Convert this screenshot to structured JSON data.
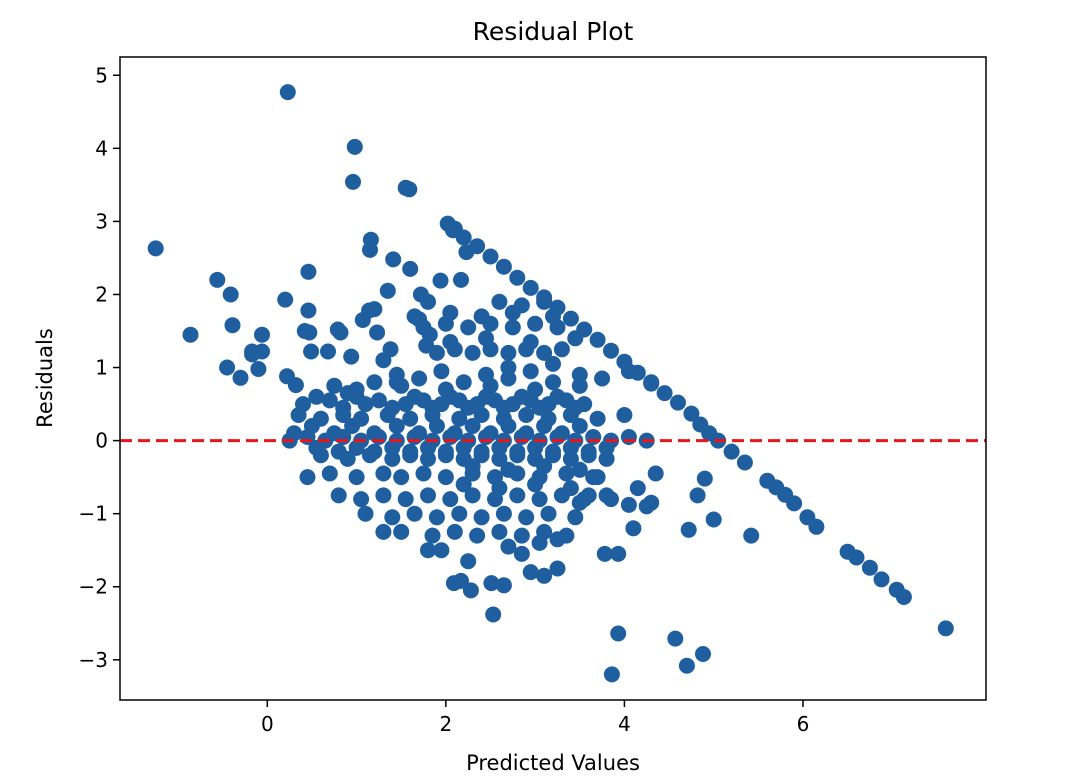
{
  "colors": {
    "points": "#1f5fa0",
    "reference_line": "#e8161b",
    "axes": "#000000",
    "background": "#ffffff"
  },
  "chart_data": {
    "type": "scatter",
    "title": "Residual Plot",
    "xlabel": "Predicted Values",
    "ylabel": "Residuals",
    "xlim": [
      -1.65,
      8.05
    ],
    "ylim": [
      -3.55,
      5.25
    ],
    "xticks": [
      0,
      2,
      4,
      6
    ],
    "xtick_labels": [
      "0",
      "2",
      "4",
      "6"
    ],
    "yticks": [
      -3,
      -2,
      -1,
      0,
      1,
      2,
      3,
      4,
      5
    ],
    "ytick_labels": [
      "−3",
      "−2",
      "−1",
      "0",
      "1",
      "2",
      "3",
      "4",
      "5"
    ],
    "grid": false,
    "reference_line": {
      "orientation": "horizontal",
      "y": 0,
      "style": "dashed"
    },
    "series": [
      {
        "name": "Residuals",
        "x": [
          0.23,
          0.98,
          0.96,
          1.55,
          1.59,
          -1.25,
          2.02,
          2.08,
          1.16,
          1.15,
          2.23,
          1.41,
          0.46,
          2.17,
          1.94,
          1.35,
          1.6,
          -0.56,
          -0.41,
          1.72,
          1.8,
          0.2,
          1.14,
          0.46,
          0.42,
          1.23,
          1.38,
          -0.86,
          0.47,
          1.78,
          0.82,
          0.79,
          -0.06,
          -0.39,
          1.07,
          1.2,
          -0.17,
          0.49,
          0.68,
          0.94,
          -0.45,
          -0.06,
          -0.17,
          -0.1,
          1.7,
          1.82,
          1.3,
          2.05,
          1.45,
          -0.3,
          0.9,
          0.75,
          0.32,
          0.22,
          2.1,
          2.2,
          2.35,
          2.5,
          2.65,
          2.8,
          2.95,
          3.1,
          3.25,
          3.4,
          3.55,
          3.7,
          3.85,
          4.0,
          4.15,
          4.3,
          4.45,
          4.6,
          4.75,
          4.85,
          4.95,
          5.05,
          5.2,
          5.35,
          5.6,
          5.7,
          5.8,
          5.9,
          6.05,
          6.15,
          6.5,
          6.6,
          6.75,
          6.88,
          7.05,
          7.13,
          7.6,
          3.93,
          3.86,
          4.57,
          4.7,
          4.88,
          2.53,
          2.17,
          2.28,
          2.09,
          2.51,
          2.65,
          2.95,
          3.1,
          3.25,
          3.78,
          3.93,
          4.1,
          4.72,
          4.82,
          4.9,
          5.0,
          5.42,
          4.3,
          4.35,
          4.25,
          3.5,
          3.6,
          3.7,
          3.85,
          4.15,
          4.05,
          1.3,
          1.8,
          1.95,
          2.25,
          2.7,
          3.25,
          2.85,
          3.05,
          0.4,
          0.55,
          0.7,
          0.85,
          1.0,
          1.1,
          1.25,
          1.4,
          1.55,
          1.65,
          1.75,
          1.85,
          1.95,
          2.05,
          2.15,
          2.25,
          2.35,
          2.45,
          2.55,
          2.65,
          2.75,
          2.85,
          2.95,
          3.05,
          3.15,
          3.25,
          3.35,
          3.45,
          3.55,
          0.3,
          0.5,
          0.75,
          0.95,
          1.2,
          1.45,
          1.7,
          1.9,
          2.1,
          2.3,
          2.5,
          2.7,
          2.9,
          3.1,
          3.3,
          3.5,
          0.6,
          0.9,
          1.15,
          1.4,
          1.6,
          1.8,
          2.0,
          2.2,
          2.4,
          2.6,
          2.8,
          3.0,
          3.2,
          3.4,
          3.6,
          3.8,
          0.45,
          0.7,
          1.0,
          1.3,
          1.5,
          1.75,
          2.0,
          2.3,
          2.55,
          2.8,
          3.05,
          3.35,
          3.65,
          0.35,
          0.6,
          0.85,
          1.05,
          1.35,
          1.6,
          1.85,
          2.15,
          2.4,
          2.65,
          2.9,
          3.15,
          3.4,
          3.7,
          4.0,
          0.8,
          1.05,
          1.3,
          1.55,
          1.8,
          2.05,
          2.3,
          2.55,
          2.8,
          3.05,
          3.3,
          3.55,
          3.8,
          1.1,
          1.4,
          1.65,
          1.9,
          2.15,
          2.4,
          2.65,
          2.9,
          3.15,
          3.45,
          1.5,
          1.85,
          2.1,
          2.35,
          2.6,
          2.85,
          3.1,
          3.35,
          1.2,
          1.45,
          1.7,
          1.95,
          2.2,
          2.45,
          2.7,
          2.95,
          3.2,
          3.5,
          3.75,
          4.05,
          4.3,
          0.25,
          0.45,
          0.65,
          0.85,
          1.05,
          1.25,
          1.45,
          1.65,
          1.85,
          2.05,
          2.25,
          2.45,
          2.65,
          2.85,
          3.05,
          3.25,
          3.45,
          3.65,
          3.85,
          4.05,
          4.25,
          0.55,
          0.8,
          1.0,
          1.2,
          1.4,
          1.6,
          1.8,
          2.0,
          2.2,
          2.4,
          2.6,
          2.8,
          3.0,
          3.2,
          3.4,
          3.6,
          3.8,
          1.9,
          2.1,
          2.3,
          2.5,
          2.7,
          2.9,
          3.1,
          3.3,
          1.75,
          2.0,
          2.25,
          2.5,
          2.75,
          3.0,
          3.25,
          2.6,
          2.85,
          3.1,
          1.65,
          2.05,
          2.4,
          2.75,
          3.2,
          1.0,
          1.5,
          2.0,
          2.5,
          3.0,
          3.5,
          2.2,
          2.6,
          3.0,
          3.4,
          2.3,
          2.7,
          3.1,
          3.5,
          2.45,
          2.95,
          3.45,
          2.7,
          3.2
        ],
        "y": [
          4.77,
          4.02,
          3.54,
          3.46,
          3.44,
          2.63,
          2.97,
          2.88,
          2.75,
          2.61,
          2.58,
          2.48,
          2.31,
          2.2,
          2.19,
          2.05,
          2.35,
          2.2,
          2.0,
          2.0,
          1.9,
          1.93,
          1.78,
          1.78,
          1.5,
          1.48,
          1.25,
          1.45,
          1.48,
          1.3,
          1.48,
          1.52,
          1.45,
          1.58,
          1.65,
          1.8,
          1.22,
          1.22,
          1.22,
          1.15,
          1.0,
          1.22,
          1.18,
          0.98,
          1.66,
          1.45,
          1.1,
          1.35,
          0.8,
          0.86,
          0.65,
          0.75,
          0.76,
          0.88,
          2.9,
          2.78,
          2.66,
          2.52,
          2.38,
          2.23,
          2.09,
          1.96,
          1.82,
          1.67,
          1.52,
          1.38,
          1.23,
          1.08,
          0.93,
          0.78,
          0.65,
          0.52,
          0.37,
          0.22,
          0.1,
          0.0,
          -0.15,
          -0.3,
          -0.55,
          -0.64,
          -0.74,
          -0.86,
          -1.05,
          -1.18,
          -1.52,
          -1.6,
          -1.74,
          -1.9,
          -2.04,
          -2.14,
          -2.57,
          -2.64,
          -3.2,
          -2.71,
          -3.08,
          -2.92,
          -2.38,
          -1.92,
          -2.05,
          -1.95,
          -1.95,
          -1.98,
          -1.8,
          -1.85,
          -1.75,
          -1.55,
          -1.55,
          -1.2,
          -1.22,
          -0.75,
          -0.52,
          -1.08,
          -1.3,
          -0.85,
          -0.45,
          -0.9,
          -0.85,
          -0.75,
          -0.5,
          -0.8,
          -0.65,
          -0.88,
          -1.25,
          -1.5,
          -1.5,
          -1.65,
          -1.45,
          -1.35,
          -1.55,
          -1.4,
          0.5,
          0.6,
          0.55,
          0.45,
          0.6,
          0.5,
          0.55,
          0.45,
          0.5,
          0.6,
          0.55,
          0.45,
          0.5,
          0.6,
          0.55,
          0.45,
          0.5,
          0.6,
          0.55,
          0.45,
          0.5,
          0.6,
          0.55,
          0.45,
          0.5,
          0.6,
          0.55,
          0.45,
          0.5,
          0.1,
          0.2,
          0.1,
          0.2,
          0.1,
          0.2,
          0.1,
          0.2,
          0.1,
          0.2,
          0.1,
          0.2,
          0.1,
          0.2,
          0.1,
          0.2,
          -0.2,
          -0.25,
          -0.2,
          -0.25,
          -0.2,
          -0.25,
          -0.2,
          -0.25,
          -0.2,
          -0.25,
          -0.2,
          -0.25,
          -0.2,
          -0.25,
          -0.2,
          -0.25,
          -0.5,
          -0.45,
          -0.5,
          -0.45,
          -0.5,
          -0.45,
          -0.5,
          -0.45,
          -0.5,
          -0.45,
          -0.5,
          -0.45,
          -0.5,
          0.35,
          0.3,
          0.35,
          0.3,
          0.35,
          0.3,
          0.35,
          0.3,
          0.35,
          0.3,
          0.35,
          0.3,
          0.35,
          0.3,
          0.35,
          -0.75,
          -0.8,
          -0.75,
          -0.8,
          -0.75,
          -0.8,
          -0.75,
          -0.8,
          -0.75,
          -0.8,
          -0.75,
          -0.8,
          -0.75,
          -1.0,
          -1.05,
          -1.0,
          -1.05,
          -1.0,
          -1.05,
          -1.0,
          -1.05,
          -1.0,
          -1.05,
          -1.25,
          -1.3,
          -1.25,
          -1.3,
          -1.25,
          -1.3,
          -1.25,
          -1.3,
          0.8,
          0.9,
          0.85,
          0.95,
          0.8,
          0.9,
          0.85,
          0.95,
          0.8,
          0.9,
          0.85,
          0.95,
          0.8,
          0.0,
          0.05,
          0.0,
          0.05,
          0.0,
          0.05,
          0.0,
          0.05,
          0.0,
          0.05,
          0.0,
          0.05,
          0.0,
          0.05,
          0.0,
          0.05,
          0.0,
          0.05,
          0.0,
          0.05,
          0.0,
          -0.1,
          -0.15,
          -0.1,
          -0.15,
          -0.1,
          -0.15,
          -0.1,
          -0.15,
          -0.1,
          -0.15,
          -0.1,
          -0.15,
          -0.1,
          -0.15,
          -0.1,
          -0.15,
          -0.1,
          1.2,
          1.25,
          1.2,
          1.25,
          1.2,
          1.25,
          1.2,
          1.25,
          1.55,
          1.6,
          1.55,
          1.6,
          1.55,
          1.6,
          1.55,
          1.9,
          1.85,
          1.9,
          1.7,
          1.75,
          1.7,
          1.75,
          1.7,
          0.7,
          0.75,
          0.7,
          0.75,
          0.7,
          0.75,
          -0.6,
          -0.65,
          -0.6,
          -0.65,
          -0.35,
          -0.4,
          -0.35,
          -0.4,
          1.4,
          1.35,
          1.4,
          1.0,
          1.05
        ]
      }
    ]
  }
}
